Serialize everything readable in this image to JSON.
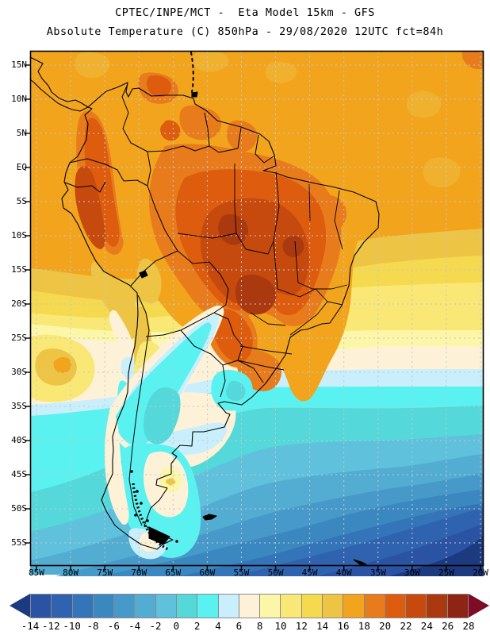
{
  "header": {
    "line1": "CPTEC/INPE/MCT -  Eta Model 15km - GFS",
    "line2": "Absolute Temperature (C) 850hPa - 29/08/2020 12UTC fct=84h"
  },
  "map": {
    "lat_labels": [
      "15N",
      "10N",
      "5N",
      "EQ",
      "5S",
      "10S",
      "15S",
      "20S",
      "25S",
      "30S",
      "35S",
      "40S",
      "45S",
      "50S",
      "55S"
    ],
    "lon_labels": [
      "85W",
      "80W",
      "75W",
      "70W",
      "65W",
      "60W",
      "55W",
      "50W",
      "45W",
      "40W",
      "35W",
      "30W",
      "25W",
      "20W"
    ],
    "gridline_color": "#c3c7cd",
    "coastline_color": "#000000",
    "frame_color": "#000000"
  },
  "colorbar": {
    "tick_labels": [
      "-14",
      "-12",
      "-10",
      "-8",
      "-6",
      "-4",
      "-2",
      "0",
      "2",
      "4",
      "6",
      "8",
      "10",
      "12",
      "14",
      "16",
      "18",
      "20",
      "22",
      "24",
      "26",
      "28"
    ],
    "cell_colors": [
      "#2b53a4",
      "#2f63af",
      "#3474b8",
      "#3b88c0",
      "#4699c9",
      "#53add2",
      "#5fc1dc",
      "#55d8da",
      "#5af2f0",
      "#c9effc",
      "#fdf2d8",
      "#fcf7a8",
      "#f9e876",
      "#f5d94f",
      "#eec445",
      "#f2a41c",
      "#e87c1c",
      "#dd5c0d",
      "#c64a0e",
      "#aa390f",
      "#8d2414"
    ],
    "left_arrow_color": "#1c3a80",
    "right_arrow_color": "#7d0c24"
  }
}
